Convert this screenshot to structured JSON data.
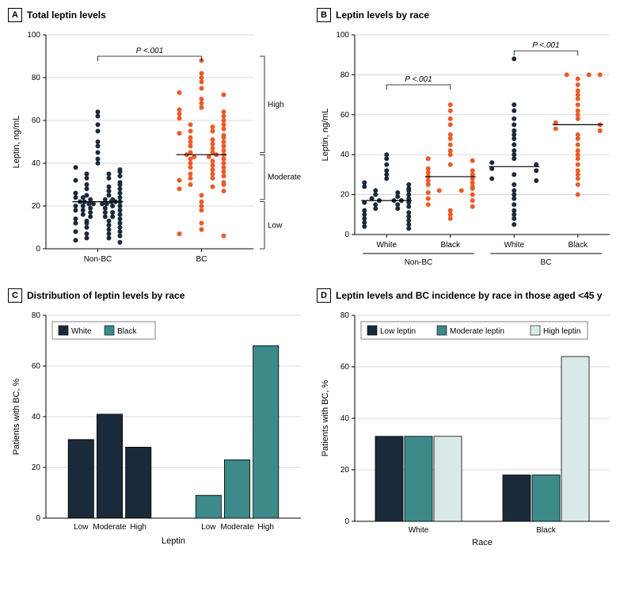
{
  "panelA": {
    "letter": "A",
    "title": "Total leptin levels",
    "ylabel": "Leptin, ng/mL",
    "ylim": [
      0,
      100
    ],
    "ytick_step": 20,
    "groups": [
      "Non-BC",
      "BC"
    ],
    "colors": {
      "Non-BC": "#1a2a3a",
      "BC": "#ed5a28"
    },
    "pvalue": "P <.001",
    "means": {
      "Non-BC": 22,
      "BC": 44
    },
    "brackets": [
      {
        "label": "High",
        "from": 45,
        "to": 90
      },
      {
        "label": "Moderate",
        "from": 23,
        "to": 44
      },
      {
        "label": "Low",
        "from": 0,
        "to": 22
      }
    ],
    "points": {
      "Non-BC": [
        3,
        4,
        5,
        5,
        6,
        7,
        7,
        8,
        8,
        9,
        10,
        10,
        11,
        12,
        12,
        12,
        13,
        13,
        14,
        14,
        15,
        15,
        15,
        16,
        16,
        17,
        17,
        17,
        18,
        18,
        18,
        19,
        19,
        20,
        20,
        20,
        20,
        21,
        21,
        21,
        21,
        22,
        22,
        22,
        22,
        22,
        23,
        23,
        23,
        24,
        24,
        24,
        25,
        25,
        26,
        26,
        27,
        28,
        28,
        29,
        30,
        30,
        31,
        32,
        33,
        33,
        34,
        35,
        35,
        36,
        37,
        38,
        40,
        42,
        45,
        48,
        50,
        55,
        58,
        62,
        64
      ],
      "BC": [
        6,
        7,
        9,
        12,
        18,
        20,
        22,
        25,
        27,
        28,
        29,
        30,
        30,
        31,
        32,
        33,
        33,
        34,
        35,
        35,
        36,
        37,
        38,
        38,
        39,
        40,
        40,
        41,
        42,
        42,
        43,
        43,
        44,
        44,
        44,
        45,
        45,
        46,
        47,
        48,
        48,
        49,
        50,
        50,
        51,
        52,
        52,
        53,
        54,
        55,
        55,
        56,
        57,
        58,
        58,
        60,
        61,
        62,
        63,
        64,
        65,
        66,
        68,
        70,
        72,
        73,
        75,
        78,
        80,
        82,
        88
      ]
    }
  },
  "panelB": {
    "letter": "B",
    "title": "Leptin levels by race",
    "ylabel": "Leptin, ng/mL",
    "ylim": [
      0,
      100
    ],
    "ytick_step": 20,
    "supergroups": [
      "Non-BC",
      "BC"
    ],
    "groups": [
      "White",
      "Black",
      "White",
      "Black"
    ],
    "colors": [
      "#1a2a3a",
      "#ed5a28",
      "#1a2a3a",
      "#ed5a28"
    ],
    "pvalues": [
      "P <.001",
      "P <.001"
    ],
    "means": [
      17,
      29,
      34,
      55
    ],
    "points": [
      [
        3,
        4,
        5,
        6,
        7,
        8,
        9,
        10,
        11,
        12,
        13,
        13,
        14,
        15,
        15,
        16,
        16,
        17,
        17,
        17,
        18,
        18,
        19,
        20,
        20,
        21,
        22,
        22,
        23,
        24,
        25,
        26,
        28,
        30,
        32,
        35,
        38,
        40
      ],
      [
        8,
        10,
        12,
        14,
        15,
        17,
        18,
        20,
        21,
        22,
        22,
        23,
        24,
        25,
        26,
        27,
        28,
        29,
        30,
        31,
        32,
        33,
        35,
        37,
        38,
        40,
        42,
        45,
        48,
        50,
        55,
        58,
        62,
        65
      ],
      [
        5,
        8,
        10,
        12,
        15,
        18,
        20,
        22,
        25,
        27,
        28,
        30,
        32,
        33,
        35,
        36,
        38,
        40,
        42,
        45,
        48,
        50,
        52,
        55,
        58,
        62,
        65,
        88
      ],
      [
        20,
        25,
        28,
        30,
        32,
        35,
        38,
        40,
        42,
        45,
        48,
        50,
        52,
        53,
        55,
        56,
        58,
        60,
        62,
        65,
        68,
        70,
        72,
        75,
        78,
        80,
        80,
        80
      ]
    ]
  },
  "panelC": {
    "letter": "C",
    "title": "Distribution of leptin levels by race",
    "ylabel": "Patients with BC, %",
    "xlabel": "Leptin",
    "ylim": [
      0,
      80
    ],
    "ytick_step": 20,
    "legend": [
      "White",
      "Black"
    ],
    "legend_colors": [
      "#1a2a3a",
      "#3d8a8a"
    ],
    "categories": [
      "Low",
      "Moderate",
      "High"
    ],
    "values": {
      "White": [
        31,
        41,
        28
      ],
      "Black": [
        9,
        23,
        68
      ]
    },
    "bar_outline": "#000"
  },
  "panelD": {
    "letter": "D",
    "title": "Leptin levels and BC incidence by race in those aged <45 y",
    "ylabel": "Patients with BC, %",
    "xlabel": "Race",
    "ylim": [
      0,
      80
    ],
    "ytick_step": 20,
    "legend": [
      "Low leptin",
      "Moderate leptin",
      "High leptin"
    ],
    "legend_colors": [
      "#1a2a3a",
      "#3d8a8a",
      "#d9e8e8"
    ],
    "categories": [
      "White",
      "Black"
    ],
    "values": {
      "White": [
        33,
        33,
        33
      ],
      "Black": [
        18,
        18,
        64
      ]
    },
    "bar_outline": "#000"
  },
  "plot": {
    "dot_radius": 3,
    "jitter_width": 28,
    "mean_line_color": "#000",
    "background": "#ffffff",
    "grid_color": "#cccccc"
  }
}
